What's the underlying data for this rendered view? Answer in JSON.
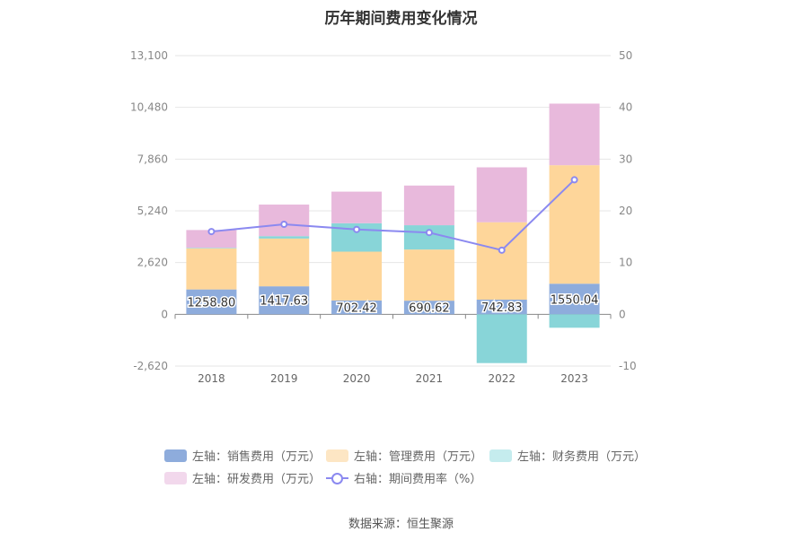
{
  "title": "历年期间费用变化情况",
  "source": "数据来源：恒生聚源",
  "chart_data": {
    "type": "bar",
    "stacked": true,
    "categories": [
      "2018",
      "2019",
      "2020",
      "2021",
      "2022",
      "2023"
    ],
    "y_left": {
      "ticks": [
        "13,100",
        "10,480",
        "7,860",
        "5,240",
        "2,620",
        "0",
        "-2,620"
      ],
      "ylim": [
        -2620,
        13100
      ]
    },
    "y_right": {
      "ticks": [
        "50",
        "40",
        "30",
        "20",
        "10",
        "0",
        "-10"
      ],
      "ylim": [
        -10,
        50
      ]
    },
    "series": [
      {
        "name": "左轴：销售费用（万元）",
        "axis": "left",
        "color": "#8eacdc",
        "values": [
          1258.8,
          1417.63,
          702.42,
          690.62,
          742.83,
          1550.04
        ]
      },
      {
        "name": "左轴：管理费用（万元）",
        "axis": "left",
        "color": "#fed69a",
        "values": [
          2080,
          2420,
          2470,
          2590,
          3920,
          6000
        ]
      },
      {
        "name": "左轴：财务费用（万元）",
        "axis": "left",
        "color": "#88d5d8",
        "values": [
          30,
          120,
          1440,
          1230,
          -2470,
          -680
        ]
      },
      {
        "name": "左轴：研发费用（万元）",
        "axis": "left",
        "color": "#e8b9dc",
        "values": [
          900,
          1600,
          1600,
          2010,
          2780,
          3120
        ]
      },
      {
        "name": "右轴：期间费用率（%）",
        "axis": "right",
        "type": "line",
        "color": "#8b89f0",
        "values": [
          16.0,
          17.4,
          16.4,
          15.8,
          12.4,
          26.0
        ]
      }
    ],
    "bar_labels": [
      "1258.80",
      "1417.63",
      "702.42",
      "690.62",
      "742.83",
      "1550.04"
    ],
    "grid": true,
    "legend_position": "bottom"
  }
}
